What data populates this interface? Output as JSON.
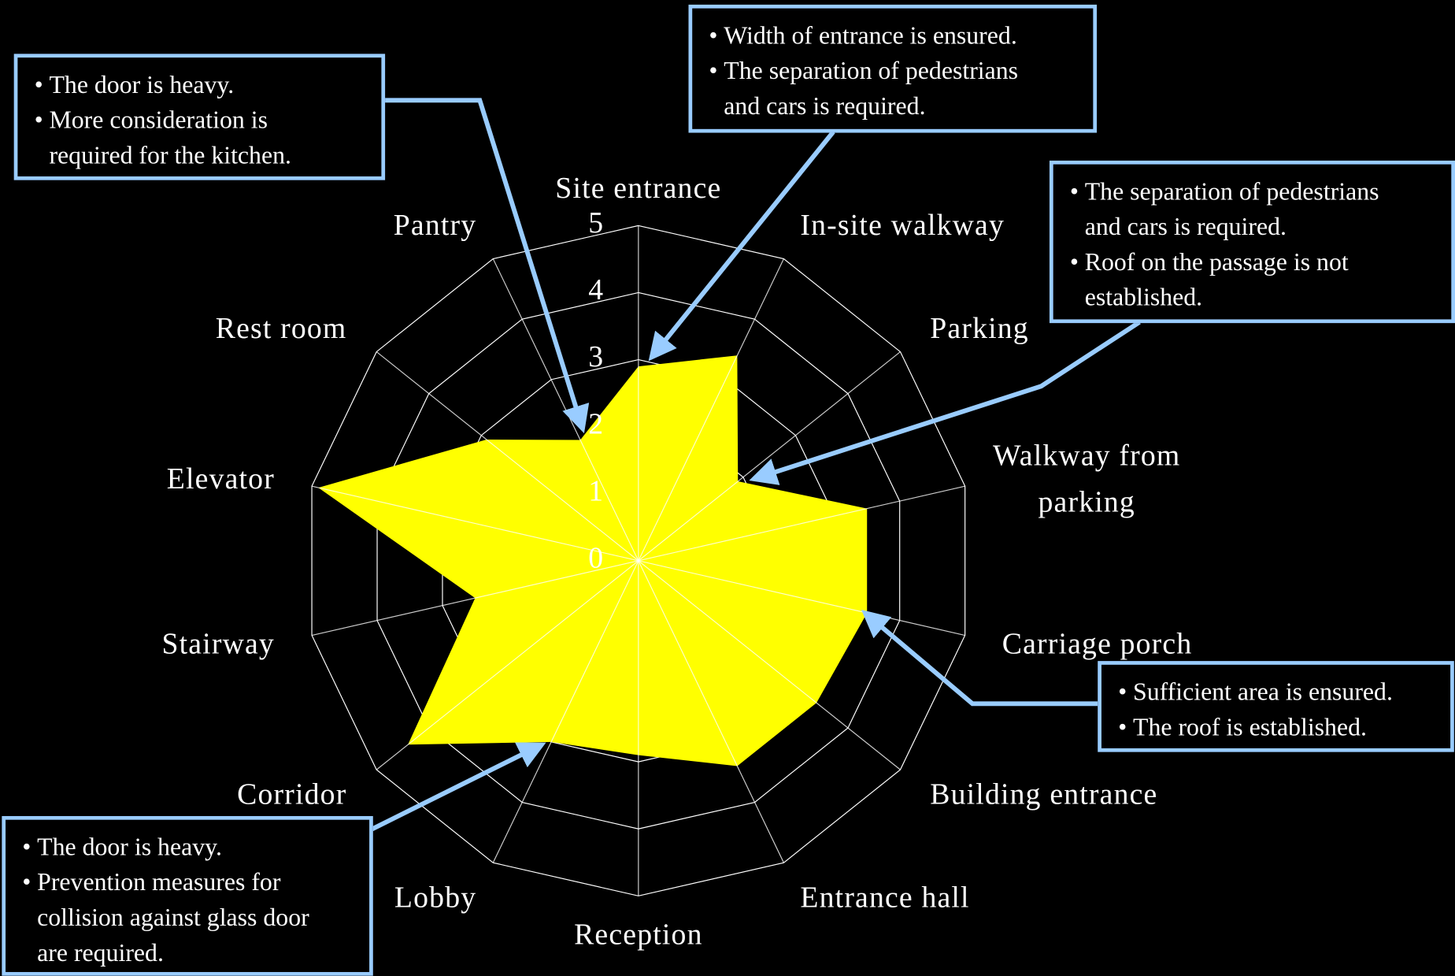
{
  "chart_data": {
    "type": "radar",
    "categories": [
      "Site entrance",
      "In-site walkway",
      "Parking",
      "Walkway from parking",
      "Carriage porch",
      "Building entrance",
      "Entrance hall",
      "Reception",
      "Lobby",
      "Corridor",
      "Stairway",
      "Elevator",
      "Rest room",
      "Pantry"
    ],
    "values": [
      2.9,
      3.4,
      1.9,
      3.5,
      3.5,
      3.4,
      3.4,
      2.9,
      3,
      4.4,
      2.5,
      4.9,
      2.9,
      2
    ],
    "color": "#ffff00",
    "ylim": [
      0,
      5
    ],
    "yticks": [
      0,
      1,
      2,
      3,
      4,
      5
    ],
    "grid": true,
    "annotations": [
      {
        "bullets": [
          [
            "The door is heavy."
          ],
          [
            "More consideration is",
            "required for the kitchen."
          ]
        ]
      },
      {
        "bullets": [
          [
            "Width of entrance is ensured."
          ],
          [
            "The separation of pedestrians",
            "and cars is required."
          ]
        ]
      },
      {
        "bullets": [
          [
            "The separation of pedestrians",
            "and cars is required."
          ],
          [
            "Roof on the passage is not",
            "established."
          ]
        ]
      },
      {
        "bullets": [
          [
            "Sufficient area is ensured."
          ],
          [
            "The roof is established."
          ]
        ]
      },
      {
        "bullets": [
          [
            "The door is heavy."
          ],
          [
            "Prevention measures for",
            "collision against glass door",
            "are required."
          ]
        ]
      }
    ]
  }
}
